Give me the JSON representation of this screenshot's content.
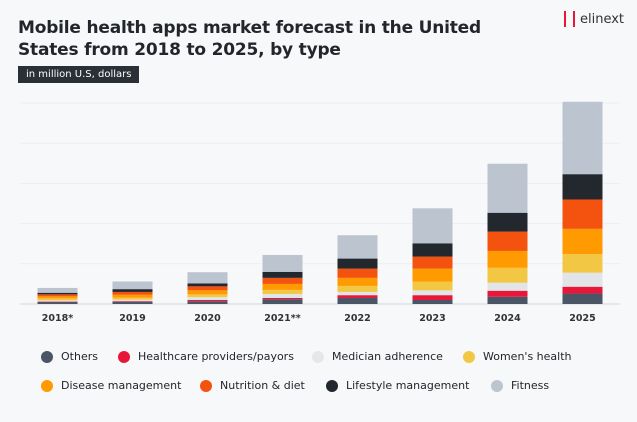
{
  "title": "Mobile health apps market forecast in the United States from 2018 to 2025, by type",
  "unit_badge": "in million U.S, dollars",
  "logo": "elinext",
  "chart_data": {
    "type": "bar",
    "stacked": true,
    "title": "Mobile health apps market forecast in the United States from 2018 to 2025, by type",
    "subtitle": "in million U.S, dollars",
    "categories": [
      "2018*",
      "2019",
      "2020",
      "2021**",
      "2022",
      "2023",
      "2024",
      "2025"
    ],
    "ylim": [
      0,
      5
    ],
    "y_axis_labels_shown": false,
    "grid": true,
    "legend_placement": "bottom",
    "series": [
      {
        "name": "Others",
        "color": "#4a5566",
        "values": [
          0.05,
          0.05,
          0.07,
          0.12,
          0.15,
          0.1,
          0.18,
          0.26
        ]
      },
      {
        "name": "Healthcare providers/payors",
        "color": "#e8173a",
        "values": [
          0.01,
          0.02,
          0.03,
          0.03,
          0.07,
          0.12,
          0.15,
          0.17
        ]
      },
      {
        "name": "Medician adherence",
        "color": "#e1e5e8",
        "values": [
          0.03,
          0.04,
          0.07,
          0.1,
          0.08,
          0.12,
          0.2,
          0.35
        ]
      },
      {
        "name": "Women's health",
        "color": "#f2c744",
        "values": [
          0.05,
          0.05,
          0.07,
          0.1,
          0.15,
          0.22,
          0.37,
          0.46
        ]
      },
      {
        "name": "Disease management",
        "color": "#ff9a00",
        "values": [
          0.05,
          0.07,
          0.1,
          0.15,
          0.2,
          0.32,
          0.42,
          0.63
        ]
      },
      {
        "name": "Nutrition & diet",
        "color": "#f4520f",
        "values": [
          0.05,
          0.07,
          0.1,
          0.15,
          0.23,
          0.3,
          0.48,
          0.73
        ]
      },
      {
        "name": "Lifestyle management",
        "color": "#23272e",
        "values": [
          0.04,
          0.07,
          0.07,
          0.15,
          0.25,
          0.33,
          0.47,
          0.63
        ]
      },
      {
        "name": "Fitness",
        "color": "#bcc4cf",
        "values": [
          0.12,
          0.19,
          0.28,
          0.42,
          0.58,
          0.87,
          1.22,
          1.8
        ]
      }
    ]
  }
}
